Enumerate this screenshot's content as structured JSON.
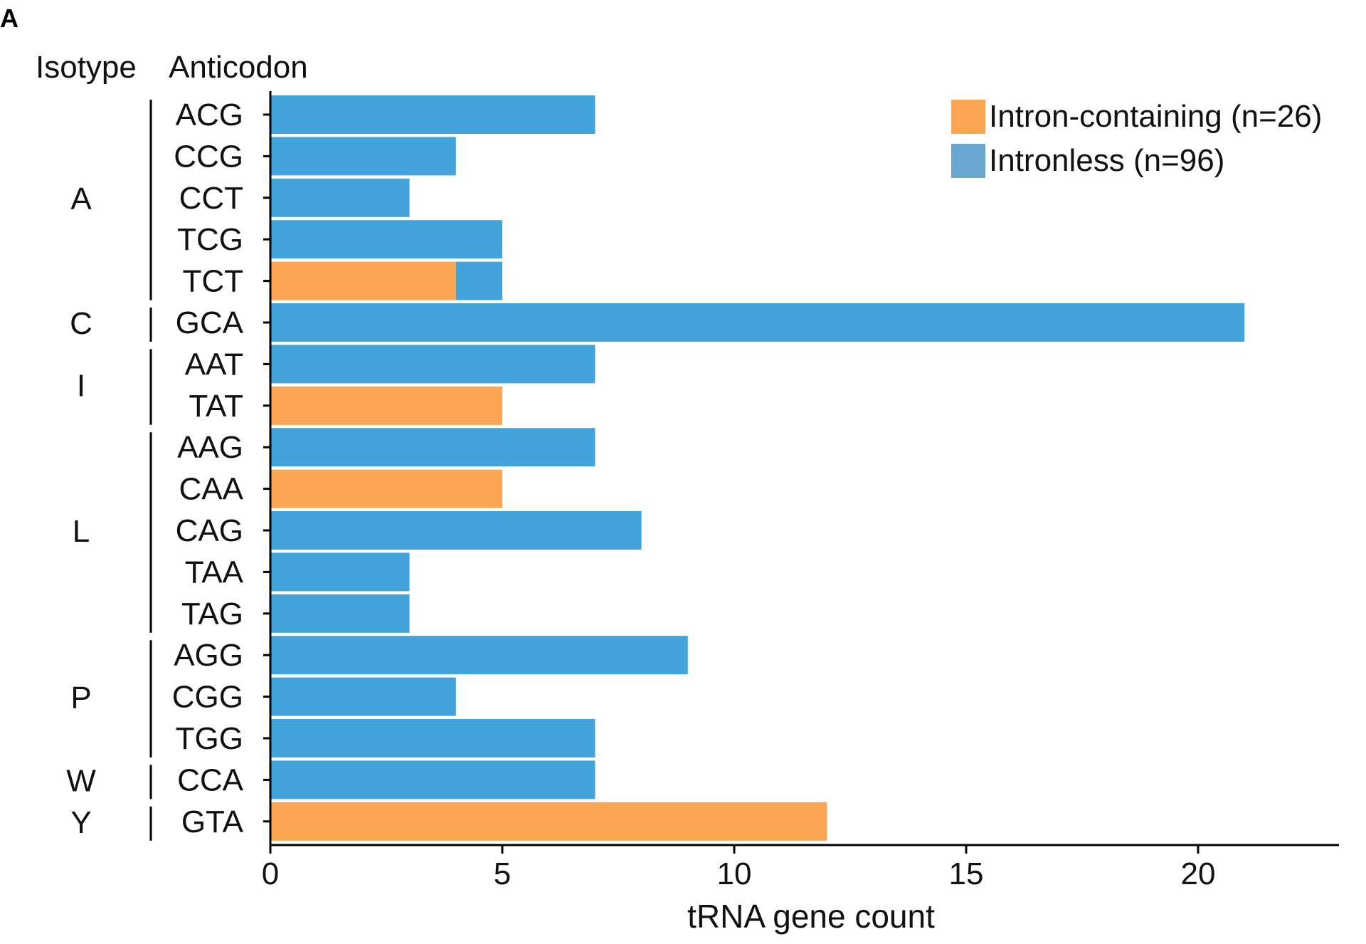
{
  "panel_label": "A",
  "header": {
    "isotype": "Isotype",
    "anticodon": "Anticodon"
  },
  "legend": [
    {
      "label": "Intron-containing (n=26)",
      "color": "#F9A552"
    },
    {
      "label": "Intronless (n=96)",
      "color": "#6AA6D2"
    }
  ],
  "colors": {
    "intronless_bar": "#42A4DB",
    "intron_bar": "#F9A552",
    "axis": "#000000"
  },
  "chart_data": {
    "type": "bar",
    "orientation": "horizontal",
    "stacked": true,
    "xlabel": "tRNA gene count",
    "xlim": [
      0,
      23
    ],
    "xticks": [
      0,
      5,
      10,
      15,
      20
    ],
    "groups": [
      {
        "isotype": "A",
        "anticodons": [
          "ACG",
          "CCG",
          "CCT",
          "TCG",
          "TCT"
        ]
      },
      {
        "isotype": "C",
        "anticodons": [
          "GCA"
        ]
      },
      {
        "isotype": "I",
        "anticodons": [
          "AAT",
          "TAT"
        ]
      },
      {
        "isotype": "L",
        "anticodons": [
          "AAG",
          "CAA",
          "CAG",
          "TAA",
          "TAG"
        ]
      },
      {
        "isotype": "P",
        "anticodons": [
          "AGG",
          "CGG",
          "TGG"
        ]
      },
      {
        "isotype": "W",
        "anticodons": [
          "CCA"
        ]
      },
      {
        "isotype": "Y",
        "anticodons": [
          "GTA"
        ]
      }
    ],
    "categories": [
      "ACG",
      "CCG",
      "CCT",
      "TCG",
      "TCT",
      "GCA",
      "AAT",
      "TAT",
      "AAG",
      "CAA",
      "CAG",
      "TAA",
      "TAG",
      "AGG",
      "CGG",
      "TGG",
      "CCA",
      "GTA"
    ],
    "series": [
      {
        "name": "Intron-containing (n=26)",
        "values": [
          0,
          0,
          0,
          0,
          4,
          0,
          0,
          5,
          0,
          5,
          0,
          0,
          0,
          0,
          0,
          0,
          0,
          12
        ]
      },
      {
        "name": "Intronless (n=96)",
        "values": [
          7,
          4,
          3,
          5,
          1,
          21,
          7,
          0,
          7,
          0,
          8,
          3,
          3,
          9,
          4,
          7,
          7,
          0
        ]
      }
    ]
  }
}
